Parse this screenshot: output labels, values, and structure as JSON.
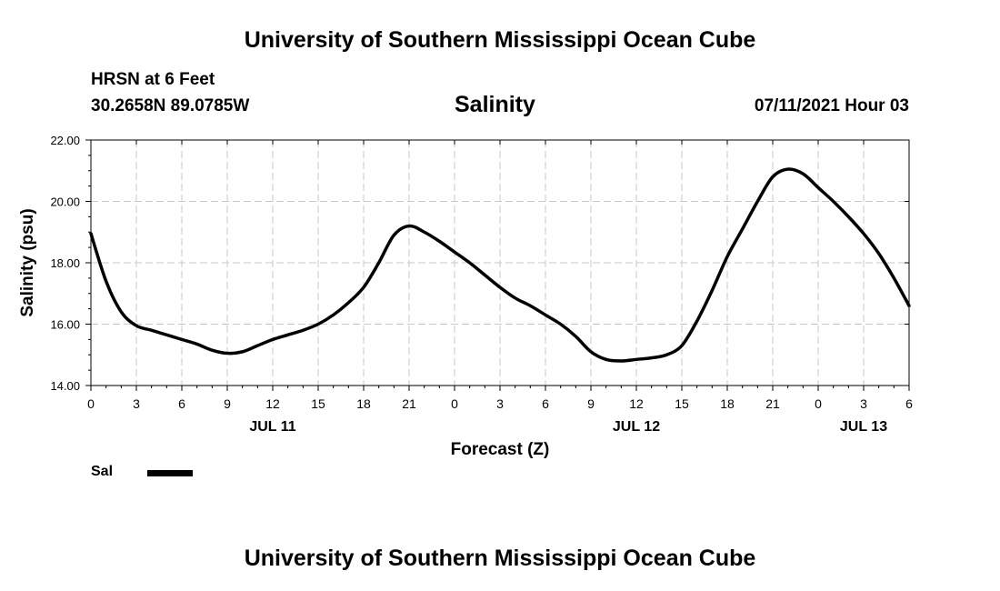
{
  "header": {
    "top_title": "University of Southern Mississippi Ocean Cube",
    "station": "HRSN at 6 Feet",
    "coords": "30.2658N  89.0785W",
    "variable_title": "Salinity",
    "timestamp": "07/11/2021 Hour 03"
  },
  "footer": {
    "bottom_title": "University of Southern Mississippi Ocean Cube"
  },
  "legend": {
    "label": "Sal"
  },
  "chart_data": {
    "type": "line",
    "title": "Salinity",
    "xlabel": "Forecast (Z)",
    "ylabel": "Salinity (psu)",
    "ylim": [
      14,
      22
    ],
    "xlim": [
      0,
      54
    ],
    "grid": true,
    "x_tick_labels": [
      "0",
      "3",
      "6",
      "9",
      "12",
      "15",
      "18",
      "21",
      "0",
      "3",
      "6",
      "9",
      "12",
      "15",
      "18",
      "21",
      "0",
      "3",
      "6"
    ],
    "y_tick_labels": [
      "14.00",
      "16.00",
      "18.00",
      "20.00",
      "22.00"
    ],
    "date_labels": [
      {
        "text": "JUL 11",
        "x": 12
      },
      {
        "text": "JUL 12",
        "x": 36
      },
      {
        "text": "JUL 13",
        "x": 51
      }
    ],
    "series": [
      {
        "name": "Sal",
        "color": "#000000",
        "x": [
          0,
          1,
          2,
          3,
          4,
          5,
          6,
          7,
          8,
          9,
          10,
          11,
          12,
          13,
          14,
          15,
          16,
          17,
          18,
          19,
          20,
          21,
          22,
          23,
          24,
          25,
          26,
          27,
          28,
          29,
          30,
          31,
          32,
          33,
          34,
          35,
          36,
          37,
          38,
          39,
          40,
          41,
          42,
          43,
          44,
          45,
          46,
          47,
          48,
          49,
          50,
          51,
          52,
          53,
          54
        ],
        "values": [
          18.95,
          17.4,
          16.4,
          15.95,
          15.8,
          15.65,
          15.5,
          15.35,
          15.15,
          15.05,
          15.1,
          15.3,
          15.5,
          15.65,
          15.8,
          16.0,
          16.3,
          16.7,
          17.2,
          18.0,
          18.9,
          19.2,
          19.0,
          18.7,
          18.35,
          18.0,
          17.6,
          17.2,
          16.85,
          16.6,
          16.3,
          16.0,
          15.6,
          15.1,
          14.85,
          14.8,
          14.85,
          14.9,
          15.0,
          15.3,
          16.1,
          17.1,
          18.2,
          19.1,
          20.0,
          20.8,
          21.05,
          20.9,
          20.45,
          20.0,
          19.5,
          18.95,
          18.3,
          17.5,
          16.6
        ]
      }
    ]
  }
}
